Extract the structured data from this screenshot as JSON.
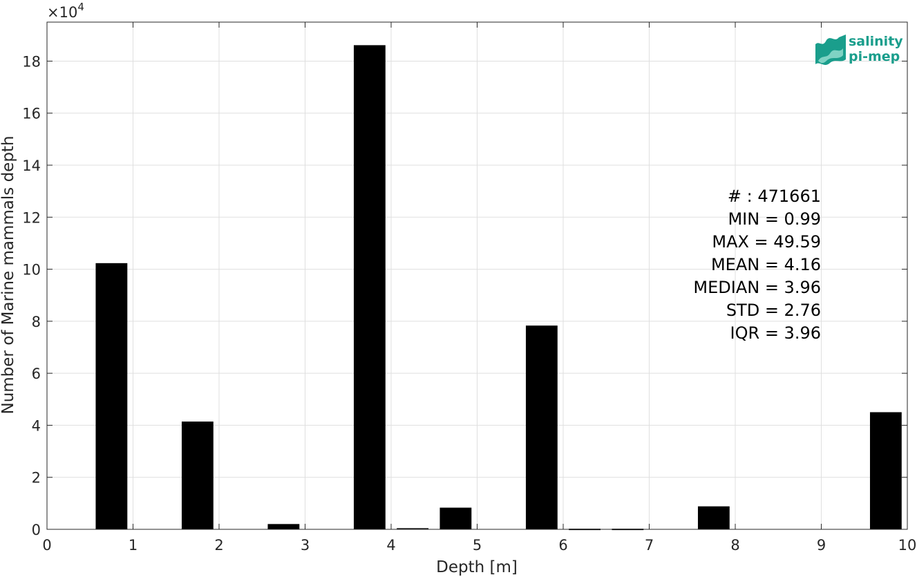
{
  "chart_data": {
    "type": "bar",
    "xlabel": "Depth [m]",
    "ylabel": "Number of Marine mammals depth",
    "exponent_label": "×10",
    "exponent_power": "4",
    "xlim": [
      0,
      10
    ],
    "ylim": [
      0,
      19.5
    ],
    "x_ticks": [
      "0",
      "1",
      "2",
      "3",
      "4",
      "5",
      "6",
      "7",
      "8",
      "9",
      "10"
    ],
    "y_ticks": [
      "0",
      "2",
      "4",
      "6",
      "8",
      "10",
      "12",
      "14",
      "16",
      "18"
    ],
    "grid": true,
    "bar_width": 0.36,
    "bar_color": "#000000",
    "bars": [
      {
        "x": 0.75,
        "value": 10.22
      },
      {
        "x": 1.75,
        "value": 4.13
      },
      {
        "x": 2.75,
        "value": 0.19
      },
      {
        "x": 3.75,
        "value": 18.6
      },
      {
        "x": 4.25,
        "value": 0.03
      },
      {
        "x": 4.75,
        "value": 0.82
      },
      {
        "x": 5.75,
        "value": 7.82
      },
      {
        "x": 6.25,
        "value": 0.01
      },
      {
        "x": 6.75,
        "value": 0.01
      },
      {
        "x": 7.75,
        "value": 0.87
      },
      {
        "x": 9.75,
        "value": 4.49
      }
    ],
    "stats": [
      "# : 471661",
      "MIN = 0.99",
      "MAX =  49.59",
      "MEAN = 4.16",
      "MEDIAN = 3.96",
      "STD = 2.76",
      "IQR = 3.96"
    ]
  },
  "logo": {
    "line1": "salinity",
    "line2": "pi-mep",
    "color": "#1a9e8c"
  }
}
